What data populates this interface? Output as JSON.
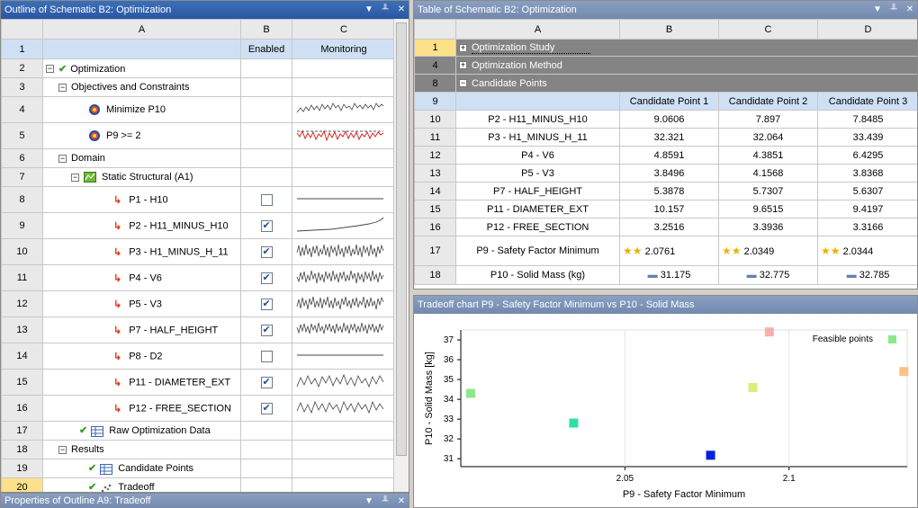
{
  "outline": {
    "title": "Outline of Schematic B2: Optimization",
    "columns": [
      "A",
      "B",
      "C"
    ],
    "header_row": {
      "num": "1",
      "b": "Enabled",
      "c": "Monitoring"
    },
    "rows": [
      {
        "num": "2",
        "label": "Optimization"
      },
      {
        "num": "3",
        "label": "Objectives and Constraints"
      },
      {
        "num": "4",
        "label": "Minimize P10"
      },
      {
        "num": "5",
        "label": "P9 >= 2"
      },
      {
        "num": "6",
        "label": "Domain"
      },
      {
        "num": "7",
        "label": "Static Structural (A1)"
      },
      {
        "num": "8",
        "label": "P1 - H10"
      },
      {
        "num": "9",
        "label": "P2 - H11_MINUS_H10"
      },
      {
        "num": "10",
        "label": "P3 - H1_MINUS_H_11"
      },
      {
        "num": "11",
        "label": "P4 - V6"
      },
      {
        "num": "12",
        "label": "P5 - V3"
      },
      {
        "num": "13",
        "label": "P7 - HALF_HEIGHT"
      },
      {
        "num": "14",
        "label": "P8 - D2"
      },
      {
        "num": "15",
        "label": "P11 - DIAMETER_EXT"
      },
      {
        "num": "16",
        "label": "P12 - FREE_SECTION"
      },
      {
        "num": "17",
        "label": "Raw Optimization Data"
      },
      {
        "num": "18",
        "label": "Results"
      },
      {
        "num": "19",
        "label": "Candidate Points"
      },
      {
        "num": "20",
        "label": "Tradeoff"
      }
    ]
  },
  "properties": {
    "title": "Properties of Outline A9: Tradeoff"
  },
  "table": {
    "title": "Table of Schematic B2: Optimization",
    "columns": [
      "A",
      "B",
      "C",
      "D"
    ],
    "sections": [
      {
        "num": "1",
        "label": "Optimization Study"
      },
      {
        "num": "4",
        "label": "Optimization Method"
      },
      {
        "num": "8",
        "label": "Candidate Points"
      }
    ],
    "candidate_header": {
      "num": "9",
      "c1": "Candidate Point 1",
      "c2": "Candidate Point 2",
      "c3": "Candidate Point 3"
    },
    "rows": [
      {
        "num": "10",
        "label": "P2 - H11_MINUS_H10",
        "v": [
          "9.0606",
          "7.897",
          "7.8485"
        ]
      },
      {
        "num": "11",
        "label": "P3 - H1_MINUS_H_11",
        "v": [
          "32.321",
          "32.064",
          "33.439"
        ]
      },
      {
        "num": "12",
        "label": "P4 - V6",
        "v": [
          "4.8591",
          "4.3851",
          "6.4295"
        ]
      },
      {
        "num": "13",
        "label": "P5 - V3",
        "v": [
          "3.8496",
          "4.1568",
          "3.8368"
        ]
      },
      {
        "num": "14",
        "label": "P7 - HALF_HEIGHT",
        "v": [
          "5.3878",
          "5.7307",
          "5.6307"
        ]
      },
      {
        "num": "15",
        "label": "P11 - DIAMETER_EXT",
        "v": [
          "10.157",
          "9.6515",
          "9.4197"
        ]
      },
      {
        "num": "16",
        "label": "P12 - FREE_SECTION",
        "v": [
          "3.2516",
          "3.3936",
          "3.3166"
        ]
      },
      {
        "num": "17",
        "label": "P9 - Safety Factor Minimum",
        "v": [
          "2.0761",
          "2.0349",
          "2.0344"
        ]
      },
      {
        "num": "18",
        "label": "P10 - Solid Mass (kg)",
        "v": [
          "31.175",
          "32.775",
          "32.785"
        ]
      }
    ]
  },
  "tradeoff": {
    "title": "Tradeoff chart P9 - Safety Factor Minimum vs P10 - Solid Mass",
    "legend": "Feasible points"
  },
  "chart_data": {
    "type": "scatter",
    "xlabel": "P9 - Safety Factor Minimum",
    "ylabel": "P10 - Solid Mass  [kg]",
    "xlim": [
      2.0,
      2.136
    ],
    "ylim": [
      30.6,
      37.5
    ],
    "xticks": [
      "2.05",
      "2.1"
    ],
    "yticks": [
      "31",
      "32",
      "33",
      "34",
      "35",
      "36",
      "37"
    ],
    "points": [
      {
        "x": 2.003,
        "y": 34.3,
        "color": "#8de88a"
      },
      {
        "x": 2.0344,
        "y": 32.8,
        "color": "#2ee0a0"
      },
      {
        "x": 2.0761,
        "y": 31.175,
        "color": "#0020e0"
      },
      {
        "x": 2.089,
        "y": 34.6,
        "color": "#d8f07a"
      },
      {
        "x": 2.094,
        "y": 37.4,
        "color": "#f6b0b0"
      },
      {
        "x": 2.135,
        "y": 35.4,
        "color": "#f8c08a"
      }
    ],
    "legend_swatch_color": "#8de88a"
  }
}
